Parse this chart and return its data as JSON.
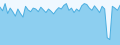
{
  "values": [
    420,
    380,
    460,
    350,
    410,
    370,
    320,
    400,
    350,
    310,
    430,
    390,
    370,
    410,
    400,
    370,
    420,
    390,
    360,
    400,
    375,
    345,
    385,
    415,
    400,
    440,
    460,
    385,
    410,
    360,
    400,
    375,
    435,
    460,
    450,
    410,
    385,
    435,
    400,
    360,
    430,
    400,
    80,
    60,
    430,
    410,
    385,
    440
  ],
  "line_color": "#4aaee0",
  "fill_color": "#8dcff0",
  "background_color": "#f0f8ff",
  "ylim_min": 0,
  "ylim_max": 500,
  "linewidth": 0.7
}
